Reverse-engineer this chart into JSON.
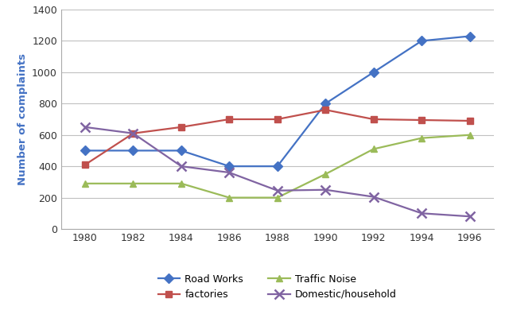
{
  "years": [
    1980,
    1982,
    1984,
    1986,
    1988,
    1990,
    1992,
    1994,
    1996
  ],
  "road_works": [
    500,
    500,
    500,
    400,
    400,
    800,
    1000,
    1200,
    1230
  ],
  "factories": [
    410,
    610,
    650,
    700,
    700,
    760,
    700,
    695,
    690
  ],
  "traffic_noise": [
    290,
    290,
    290,
    200,
    200,
    350,
    510,
    580,
    600
  ],
  "domestic_household": [
    650,
    610,
    400,
    360,
    245,
    250,
    205,
    100,
    80
  ],
  "series_colors": {
    "road_works": "#4472C4",
    "factories": "#C0504D",
    "traffic_noise": "#9BBB59",
    "domestic_household": "#8064A2"
  },
  "markers": {
    "road_works": "D",
    "factories": "s",
    "traffic_noise": "^",
    "domestic_household": "x"
  },
  "legend_labels": {
    "road_works": "Road Works",
    "factories": "factories",
    "traffic_noise": "Traffic Noise",
    "domestic_household": "Domestic/household"
  },
  "legend_order": [
    "road_works",
    "factories",
    "traffic_noise",
    "domestic_household"
  ],
  "ylabel": "Number of complaints",
  "ylabel_color": "#4472C4",
  "ylim": [
    0,
    1400
  ],
  "xlim": [
    1979,
    1997
  ],
  "yticks": [
    0,
    200,
    400,
    600,
    800,
    1000,
    1200,
    1400
  ],
  "xticks": [
    1980,
    1982,
    1984,
    1986,
    1988,
    1990,
    1992,
    1994,
    1996
  ],
  "background_color": "#ffffff",
  "grid_color": "#c0c0c0",
  "marker_size": 6,
  "line_width": 1.6,
  "tick_fontsize": 9,
  "legend_fontsize": 9
}
